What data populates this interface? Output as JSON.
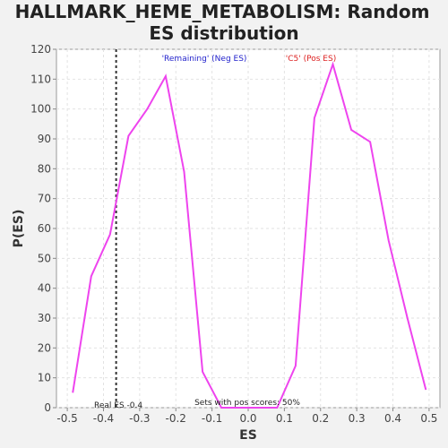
{
  "chart_data": {
    "type": "line",
    "title": "HALLMARK_HEME_METABOLISM: Random ES distribution",
    "title_lines": [
      "HALLMARK_HEME_METABOLISM: Random",
      "ES distribution"
    ],
    "xlabel": "ES",
    "ylabel": "P(ES)",
    "xlim": [
      -0.53,
      0.53
    ],
    "ylim": [
      0,
      120
    ],
    "x_ticks": [
      -0.5,
      -0.4,
      -0.3,
      -0.2,
      -0.1,
      0.0,
      0.1,
      0.2,
      0.3,
      0.4,
      0.5
    ],
    "x_tick_labels": [
      "-0.5",
      "-0.4",
      "-0.3",
      "-0.2",
      "-0.1",
      "0.0",
      "0.1",
      "0.2",
      "0.3",
      "0.4",
      "0.5"
    ],
    "y_ticks": [
      0,
      10,
      20,
      30,
      40,
      50,
      60,
      70,
      80,
      90,
      100,
      110,
      120
    ],
    "y_tick_labels": [
      "0",
      "10",
      "20",
      "30",
      "40",
      "50",
      "60",
      "70",
      "80",
      "90",
      "100",
      "110",
      "120"
    ],
    "grid": true,
    "series": [
      {
        "color": "#ee44ee",
        "x": [
          -0.485,
          -0.434,
          -0.382,
          -0.331,
          -0.279,
          -0.228,
          -0.177,
          -0.126,
          -0.074,
          -0.023,
          0.029,
          0.08,
          0.131,
          0.183,
          0.234,
          0.285,
          0.337,
          0.388,
          0.44,
          0.491
        ],
        "y": [
          5,
          44,
          58,
          91,
          100,
          111,
          79,
          12,
          0,
          0,
          0,
          0,
          14,
          97,
          115,
          93,
          89,
          56,
          30,
          6
        ]
      }
    ],
    "real_es": -0.365,
    "annotations": {
      "neg_label": "'Remaining' (Neg ES)",
      "neg_color": "#2222cc",
      "pos_label": "'C5' (Pos ES)",
      "pos_color": "#dd2222",
      "real_es_label": "Real ES -0.4",
      "pos_scores_label": "Sets with pos scores: 50%"
    }
  }
}
